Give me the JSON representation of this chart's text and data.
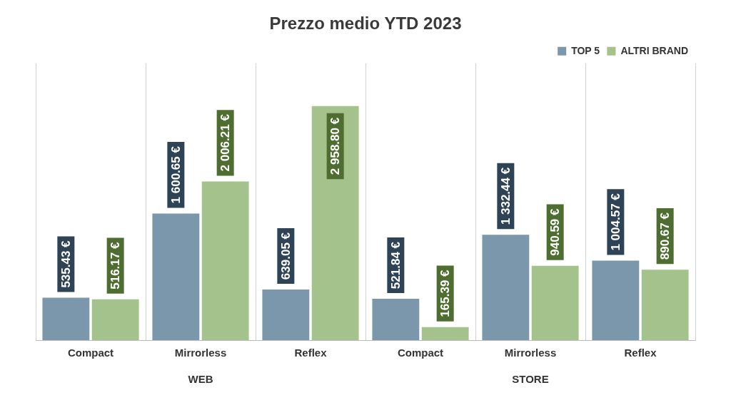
{
  "chart_data": {
    "type": "bar",
    "title": "Prezzo medio YTD 2023",
    "categories": [
      "Compact",
      "Mirrorless",
      "Reflex",
      "Compact",
      "Mirrorless",
      "Reflex"
    ],
    "series": [
      {
        "name": "TOP 5",
        "color": "#7b97ac",
        "values": [
          535.43,
          1600.65,
          639.05,
          521.84,
          1332.44,
          1004.57
        ],
        "value_labels": [
          "535.43 €",
          "1 600.65 €",
          "639.05 €",
          "521.84 €",
          "1 332.44 €",
          "1 004.57 €"
        ]
      },
      {
        "name": "ALTRI BRAND",
        "color": "#a4c28b",
        "values": [
          516.17,
          2006.21,
          2958.8,
          165.39,
          940.59,
          890.67
        ],
        "value_labels": [
          "516.17 €",
          "2 006.21 €",
          "2 958.80 €",
          "165.39 €",
          "940.59 €",
          "890.67 €"
        ]
      }
    ],
    "annotations": [
      "WEB",
      "STORE"
    ],
    "grid": "x",
    "legend": "top right"
  }
}
